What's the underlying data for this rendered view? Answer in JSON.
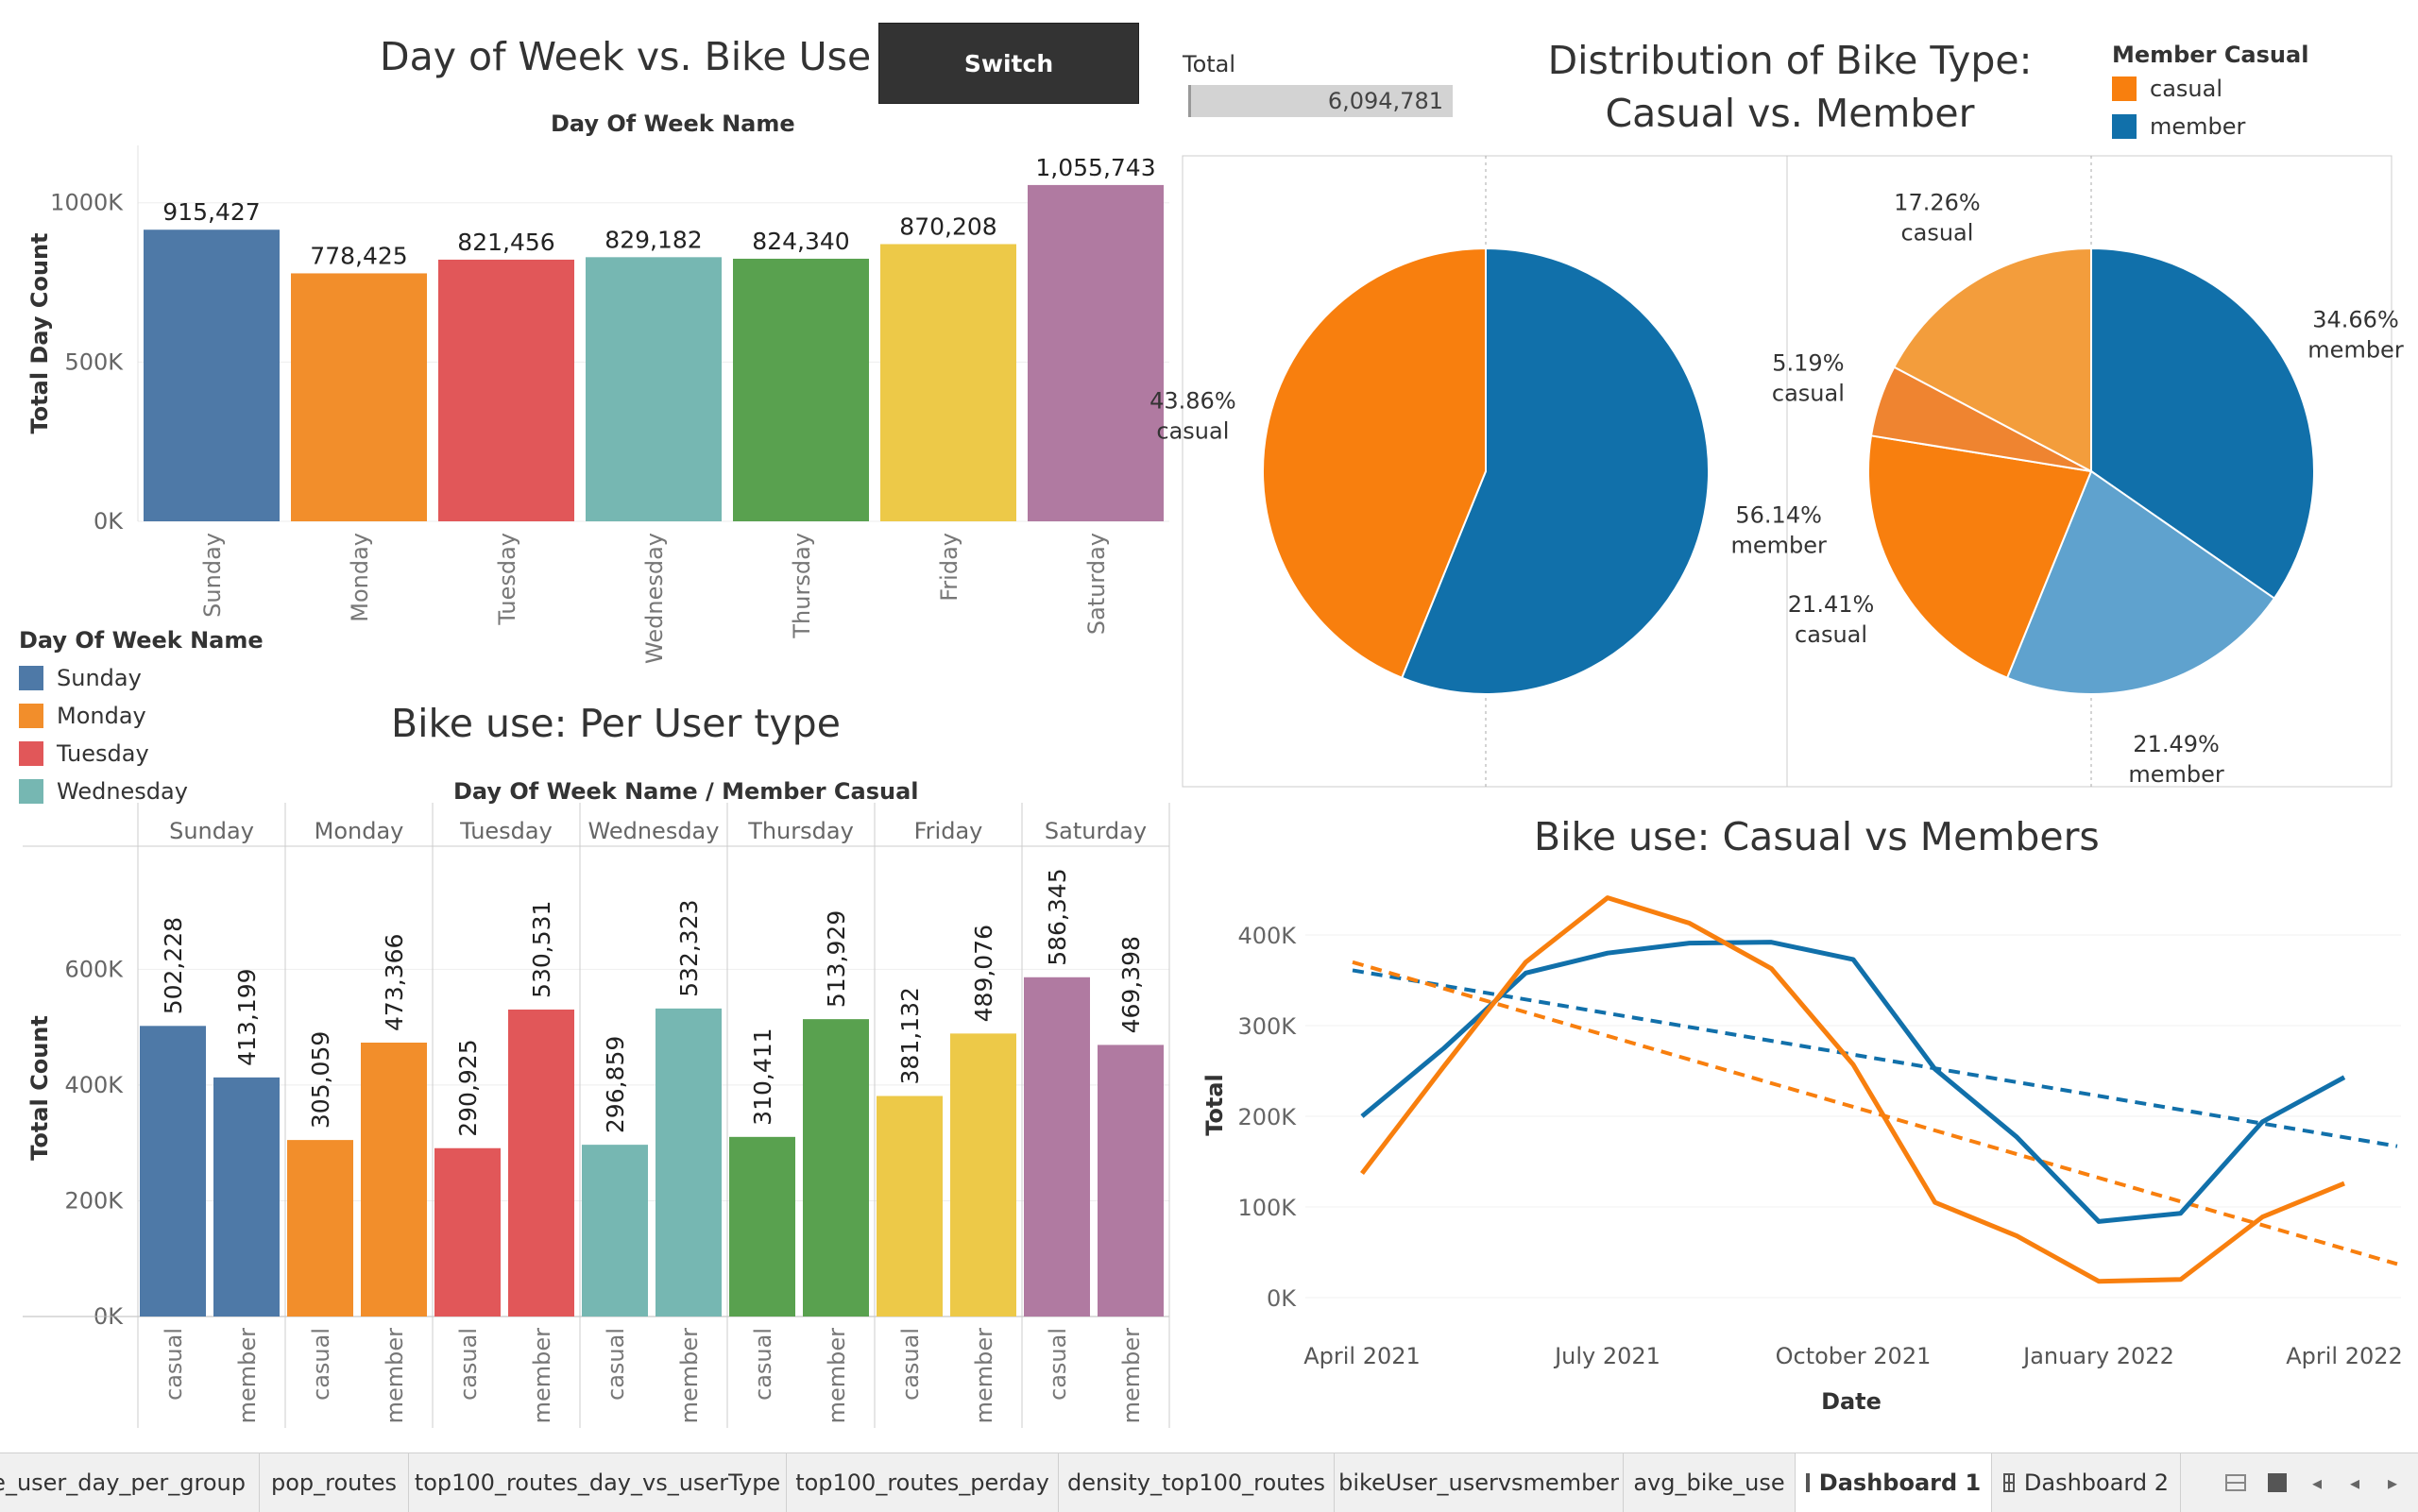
{
  "colors": {
    "sunday": "#4E79A7",
    "monday": "#F28E2B",
    "tuesday": "#E15759",
    "wednesday": "#76B7B2",
    "thursday": "#59A14F",
    "friday": "#EDC948",
    "saturday": "#B07AA1",
    "casual": "#F87F0E",
    "member": "#1170AA",
    "casual_light": "#F39D3C",
    "casual_mid": "#EF8430",
    "member_light": "#5FA2CE"
  },
  "switch_label": "Switch",
  "total": {
    "label": "Total",
    "value": "6,094,781"
  },
  "legend_day": {
    "title": "Day Of Week Name",
    "items": [
      "Sunday",
      "Monday",
      "Tuesday",
      "Wednesday"
    ]
  },
  "legend_member": {
    "title": "Member Casual",
    "items": [
      "casual",
      "member"
    ]
  },
  "chart_data": [
    {
      "type": "bar",
      "title": "Day of Week vs. Bike Use",
      "subtitle": "Day Of Week Name",
      "ylabel": "Total Day Count",
      "categories": [
        "Sunday",
        "Monday",
        "Tuesday",
        "Wednesday",
        "Thursday",
        "Friday",
        "Saturday"
      ],
      "values": [
        915427,
        778425,
        821456,
        829182,
        824340,
        870208,
        1055743
      ],
      "labels": [
        "915,427",
        "778,425",
        "821,456",
        "829,182",
        "824,340",
        "870,208",
        "1,055,743"
      ],
      "yticks": [
        "0K",
        "500K",
        "1000K"
      ],
      "ylim": [
        0,
        1180000
      ]
    },
    {
      "type": "bar",
      "title": "Bike use: Per User type",
      "subtitle": "Day Of Week Name / Member Casual",
      "ylabel": "Total Count",
      "categories": [
        "Sunday",
        "Monday",
        "Tuesday",
        "Wednesday",
        "Thursday",
        "Friday",
        "Saturday"
      ],
      "subcategories": [
        "casual",
        "member"
      ],
      "series": [
        {
          "name": "casual",
          "values": [
            502228,
            305059,
            290925,
            296859,
            310411,
            381132,
            586345
          ],
          "labels": [
            "502,228",
            "305,059",
            "290,925",
            "296,859",
            "310,411",
            "381,132",
            "586,345"
          ]
        },
        {
          "name": "member",
          "values": [
            413199,
            473366,
            530531,
            532323,
            513929,
            489076,
            469398
          ],
          "labels": [
            "413,199",
            "473,366",
            "530,531",
            "532,323",
            "513,929",
            "489,076",
            "469,398"
          ]
        }
      ],
      "yticks": [
        "0K",
        "200K",
        "400K",
        "600K"
      ],
      "ylim": [
        0,
        790000
      ]
    },
    {
      "type": "pie",
      "title": "Distribution of Bike Type: Casual vs. Member",
      "pies": [
        {
          "slices": [
            {
              "name": "member",
              "value": 56.14,
              "label": "56.14%",
              "sub": "member"
            },
            {
              "name": "casual",
              "value": 43.86,
              "label": "43.86%",
              "sub": "casual"
            }
          ]
        },
        {
          "slices": [
            {
              "name": "member",
              "value": 34.66,
              "label": "34.66%",
              "sub": "member"
            },
            {
              "name": "member",
              "value": 21.49,
              "label": "21.49%",
              "sub": "member"
            },
            {
              "name": "casual",
              "value": 21.41,
              "label": "21.41%",
              "sub": "casual"
            },
            {
              "name": "casual",
              "value": 5.19,
              "label": "5.19%",
              "sub": "casual"
            },
            {
              "name": "casual",
              "value": 17.26,
              "label": "17.26%",
              "sub": "casual"
            }
          ]
        }
      ],
      "legend": "top-right"
    },
    {
      "type": "line",
      "title": "Bike use: Casual vs Members",
      "xlabel": "Date",
      "ylabel": "Total",
      "x": [
        "2021-04",
        "2021-05",
        "2021-06",
        "2021-07",
        "2021-08",
        "2021-09",
        "2021-10",
        "2021-11",
        "2021-12",
        "2022-01",
        "2022-02",
        "2022-03",
        "2022-04"
      ],
      "xticks": [
        "April 2021",
        "July 2021",
        "October 2021",
        "January 2022",
        "April 2022"
      ],
      "yticks": [
        "0K",
        "100K",
        "200K",
        "300K",
        "400K"
      ],
      "ylim": [
        0,
        450000
      ],
      "series": [
        {
          "name": "member",
          "values": [
            200000,
            275000,
            358000,
            380000,
            391000,
            392000,
            373000,
            252000,
            177000,
            84000,
            93000,
            194000,
            243000
          ]
        },
        {
          "name": "casual",
          "values": [
            137000,
            255000,
            370000,
            441000,
            413000,
            363000,
            257000,
            105000,
            68000,
            18000,
            20000,
            89000,
            126000
          ]
        }
      ],
      "trendlines": [
        {
          "name": "member",
          "from": 361000,
          "to": 167000
        },
        {
          "name": "casual",
          "from": 370000,
          "to": 37000
        }
      ]
    }
  ],
  "tabs": [
    {
      "label": "e_user_day_per_group",
      "active": false
    },
    {
      "label": "pop_routes",
      "active": false
    },
    {
      "label": "top100_routes_day_vs_userType",
      "active": false
    },
    {
      "label": "top100_routes_perday",
      "active": false
    },
    {
      "label": "density_top100_routes",
      "active": false
    },
    {
      "label": "bikeUser_uservsmember",
      "active": false
    },
    {
      "label": "avg_bike_use",
      "active": false
    },
    {
      "label": "Dashboard 1",
      "active": true
    },
    {
      "label": "Dashboard 2",
      "active": false
    }
  ]
}
